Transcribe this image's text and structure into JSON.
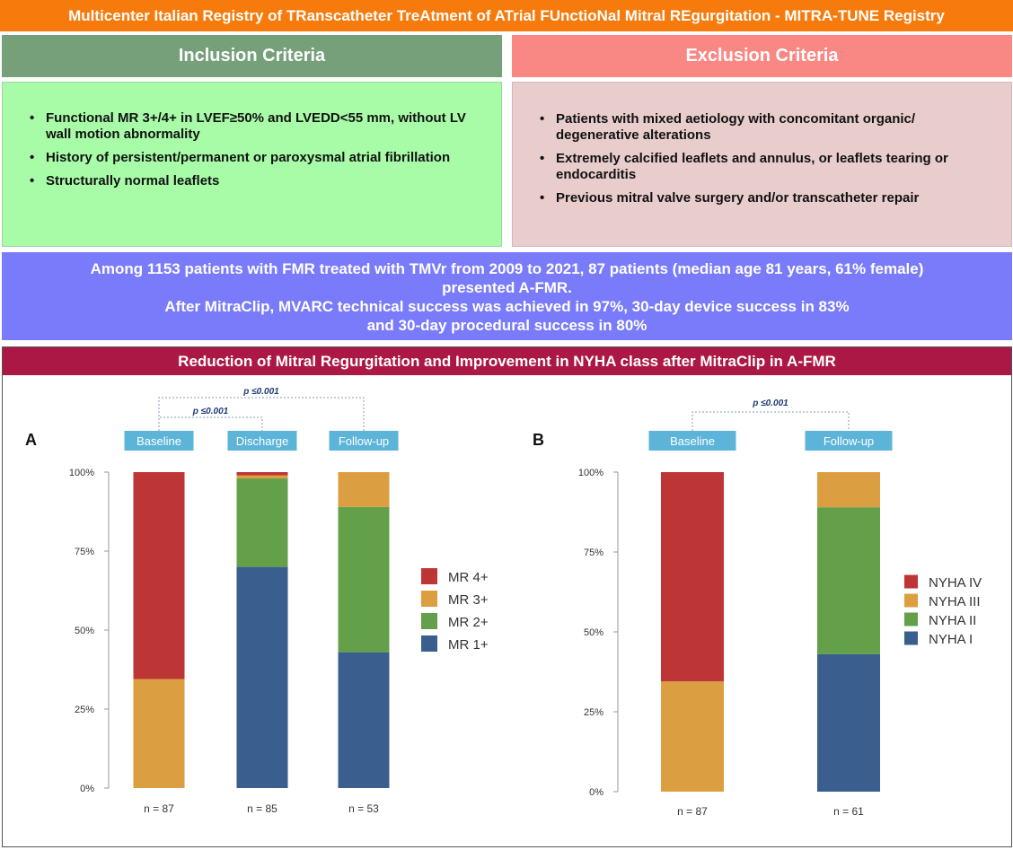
{
  "header": {
    "title": "Multicenter Italian Registry of TRanscatheter TreAtment of ATrial FUnctioNal Mitral REgurgitation - MITRA-TUNE Registry"
  },
  "inclusion": {
    "title": "Inclusion Criteria",
    "items": [
      "Functional MR 3+/4+ in LVEF≥50% and LVEDD<55 mm, without LV wall motion abnormality",
      "History of persistent/permanent or paroxysmal atrial fibrillation",
      "Structurally normal leaflets"
    ]
  },
  "exclusion": {
    "title": "Exclusion Criteria",
    "items": [
      "Patients with mixed aetiology with concomitant organic/ degenerative alterations",
      "Extremely calcified leaflets and annulus, or leaflets tearing or endocarditis",
      "Previous mitral valve surgery and/or transcatheter repair"
    ]
  },
  "bullet": "•",
  "summary": {
    "lines": [
      "Among 1153 patients with FMR treated with TMVr from 2009 to 2021, 87 patients (median age 81 years, 61% female)",
      "presented A-FMR.",
      "After MitraClip, MVARC technical success was achieved in 97%, 30-day device success in 83%",
      "and 30-day procedural success in 80%"
    ]
  },
  "chart_section": {
    "title": "Reduction of Mitral Regurgitation and Improvement in NYHA class after MitraClip in A-FMR"
  },
  "colors": {
    "red": "#be3536",
    "orange": "#db9f42",
    "green": "#64a04a",
    "blue": "#3a5e8d",
    "label_box": "#5db4d9",
    "pval": "#1f3b77"
  },
  "chart_data": [
    {
      "type": "bar",
      "stacked": true,
      "panel_label": "A",
      "categories": [
        "Baseline",
        "Discharge",
        "Follow-up"
      ],
      "n_labels": [
        "n = 87",
        "n = 85",
        "n = 53"
      ],
      "yticks": [
        "0%",
        "25%",
        "50%",
        "75%",
        "100%"
      ],
      "ylim": [
        0,
        100
      ],
      "series": [
        {
          "name": "MR 1+",
          "color": "#3a5e8d",
          "values": [
            0,
            70,
            43
          ]
        },
        {
          "name": "MR 2+",
          "color": "#64a04a",
          "values": [
            0,
            28,
            46
          ]
        },
        {
          "name": "MR 3+",
          "color": "#db9f42",
          "values": [
            34.5,
            1,
            11
          ]
        },
        {
          "name": "MR 4+",
          "color": "#be3536",
          "values": [
            65.5,
            1,
            0
          ]
        }
      ],
      "legend_order": [
        "MR 4+",
        "MR 3+",
        "MR 2+",
        "MR 1+"
      ],
      "legend_position": "right",
      "annotations": [
        {
          "text": "p ≤0.001",
          "from": "Baseline",
          "to": "Discharge"
        },
        {
          "text": "p ≤0.001",
          "from": "Baseline",
          "to": "Follow-up"
        }
      ]
    },
    {
      "type": "bar",
      "stacked": true,
      "panel_label": "B",
      "categories": [
        "Baseline",
        "Follow-up"
      ],
      "n_labels": [
        "n = 87",
        "n = 61"
      ],
      "yticks": [
        "0%",
        "25%",
        "50%",
        "75%",
        "100%"
      ],
      "ylim": [
        0,
        100
      ],
      "series": [
        {
          "name": "NYHA I",
          "color": "#3a5e8d",
          "values": [
            0,
            43
          ]
        },
        {
          "name": "NYHA II",
          "color": "#64a04a",
          "values": [
            0,
            46
          ]
        },
        {
          "name": "NYHA III",
          "color": "#db9f42",
          "values": [
            34.5,
            11
          ]
        },
        {
          "name": "NYHA IV",
          "color": "#be3536",
          "values": [
            65.5,
            0
          ]
        }
      ],
      "legend_order": [
        "NYHA IV",
        "NYHA III",
        "NYHA II",
        "NYHA I"
      ],
      "legend_position": "right",
      "annotations": [
        {
          "text": "p ≤0.001",
          "from": "Baseline",
          "to": "Follow-up"
        }
      ]
    }
  ]
}
